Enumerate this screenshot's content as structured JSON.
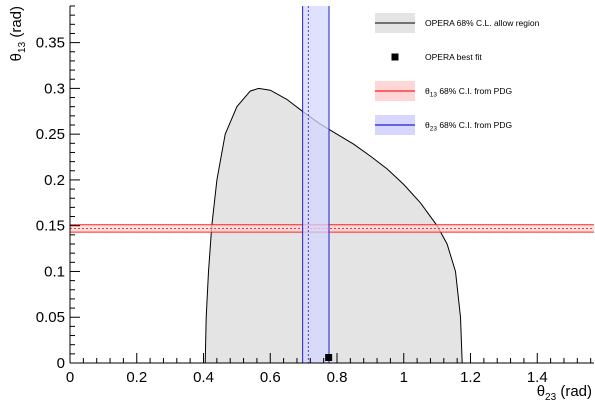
{
  "chart_data": {
    "type": "area",
    "xlabel_main": "θ",
    "xlabel_sub": "23",
    "xlabel_unit": " (rad)",
    "ylabel_main": "θ",
    "ylabel_sub": "13",
    "ylabel_unit": " (rad)",
    "xlim": [
      0,
      1.57
    ],
    "ylim": [
      0,
      0.39
    ],
    "xticks": [
      0,
      0.2,
      0.4,
      0.6,
      0.8,
      1,
      1.2,
      1.4
    ],
    "xtick_labels": [
      "0",
      "0.2",
      "0.4",
      "0.6",
      "0.8",
      "1",
      "1.2",
      "1.4"
    ],
    "yticks": [
      0,
      0.05,
      0.1,
      0.15,
      0.2,
      0.25,
      0.3,
      0.35
    ],
    "ytick_labels": [
      "0",
      "0.05",
      "0.1",
      "0.15",
      "0.2",
      "0.25",
      "0.3",
      "0.35"
    ],
    "colors": {
      "region_fill": "#e4e4e4",
      "region_line": "#000000",
      "theta13_band_fill": "#ffd6d6",
      "theta13_line": "#ff2020",
      "theta23_band_fill": "#d6d6ff",
      "theta23_line": "#2020d0"
    },
    "allowed_region": [
      [
        0.405,
        0.0
      ],
      [
        0.408,
        0.05
      ],
      [
        0.415,
        0.1
      ],
      [
        0.425,
        0.15
      ],
      [
        0.44,
        0.2
      ],
      [
        0.465,
        0.25
      ],
      [
        0.5,
        0.28
      ],
      [
        0.54,
        0.297
      ],
      [
        0.565,
        0.3
      ],
      [
        0.6,
        0.298
      ],
      [
        0.65,
        0.288
      ],
      [
        0.7,
        0.274
      ],
      [
        0.75,
        0.261
      ],
      [
        0.8,
        0.25
      ],
      [
        0.85,
        0.239
      ],
      [
        0.9,
        0.226
      ],
      [
        0.95,
        0.212
      ],
      [
        1.0,
        0.195
      ],
      [
        1.05,
        0.175
      ],
      [
        1.1,
        0.15
      ],
      [
        1.13,
        0.13
      ],
      [
        1.155,
        0.1
      ],
      [
        1.17,
        0.05
      ],
      [
        1.175,
        0.0
      ]
    ],
    "best_fit": {
      "x": 0.775,
      "y": 0.006
    },
    "theta13_band": {
      "center": 0.147,
      "low": 0.143,
      "high": 0.151
    },
    "theta23_band": {
      "center": 0.714,
      "low": 0.697,
      "high": 0.776
    },
    "legend": {
      "position": "top-right",
      "items": [
        {
          "kind": "region",
          "label": "OPERA 68% C.L. allow region"
        },
        {
          "kind": "marker",
          "label": "OPERA best fit"
        },
        {
          "kind": "band13",
          "sym": "θ",
          "sub": "13",
          "text": " 68% C.I. from PDG"
        },
        {
          "kind": "band23",
          "sym": "θ",
          "sub": "23",
          "text": " 68% C.I. from PDG"
        }
      ]
    },
    "grid": false
  }
}
